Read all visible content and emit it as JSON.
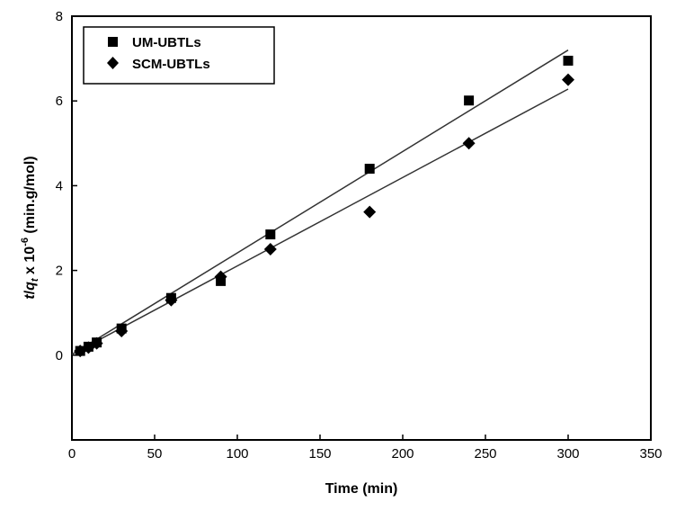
{
  "chart_data": {
    "type": "scatter",
    "xlabel": "Time (min)",
    "ylabel": {
      "t": "t",
      "slash": "/",
      "q": "q",
      "sub": "t",
      "times": " x 10",
      "sup": "-6",
      "unit": " (min.g/mol)"
    },
    "xlim": [
      0,
      350
    ],
    "ylim": [
      -2,
      8
    ],
    "xticks": [
      0,
      50,
      100,
      150,
      200,
      250,
      300,
      350
    ],
    "yticks": [
      0,
      2,
      4,
      6,
      8
    ],
    "grid": false,
    "legend_position": "top-left",
    "series": [
      {
        "name": "UM-UBTLs",
        "marker": "square",
        "color": "#000000",
        "x": [
          5,
          10,
          15,
          30,
          60,
          90,
          120,
          180,
          240,
          300
        ],
        "y": [
          0.1,
          0.2,
          0.3,
          0.63,
          1.35,
          1.75,
          2.85,
          4.4,
          6.01,
          6.95
        ],
        "fit": {
          "x": [
            0,
            300
          ],
          "y": [
            0.02,
            7.2
          ]
        }
      },
      {
        "name": "SCM-UBTLs",
        "marker": "diamond",
        "color": "#000000",
        "x": [
          5,
          10,
          15,
          30,
          60,
          90,
          120,
          180,
          240,
          300
        ],
        "y": [
          0.1,
          0.18,
          0.28,
          0.57,
          1.3,
          1.85,
          2.5,
          3.38,
          5.0,
          6.5
        ],
        "fit": {
          "x": [
            0,
            300
          ],
          "y": [
            0.02,
            6.28
          ]
        }
      }
    ]
  }
}
